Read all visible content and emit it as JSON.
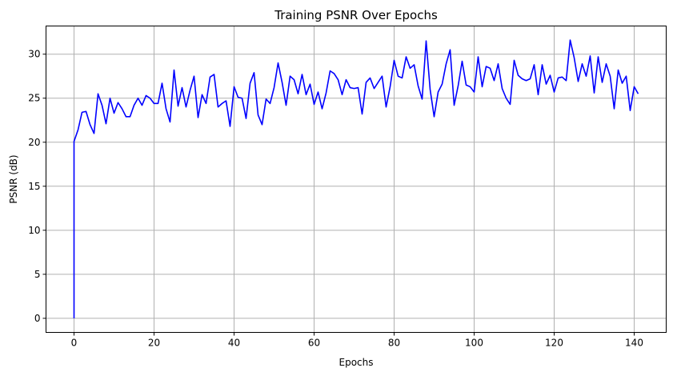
{
  "chart_data": {
    "type": "line",
    "title": "Training PSNR Over Epochs",
    "xlabel": "Epochs",
    "ylabel": "PSNR (dB)",
    "xlim": [
      -7,
      148
    ],
    "ylim": [
      -1.6,
      33.2
    ],
    "xticks": [
      0,
      20,
      40,
      60,
      80,
      100,
      120,
      140
    ],
    "yticks": [
      0,
      5,
      10,
      15,
      20,
      25,
      30
    ],
    "grid": true,
    "series": [
      {
        "color": "#0000ff",
        "x": [
          0,
          0,
          1,
          2,
          3,
          4,
          5,
          6,
          7,
          8,
          9,
          10,
          11,
          12,
          13,
          14,
          15,
          16,
          17,
          18,
          19,
          20,
          21,
          22,
          23,
          24,
          25,
          26,
          27,
          28,
          29,
          30,
          31,
          32,
          33,
          34,
          35,
          36,
          37,
          38,
          39,
          40,
          41,
          42,
          43,
          44,
          45,
          46,
          47,
          48,
          49,
          50,
          51,
          52,
          53,
          54,
          55,
          56,
          57,
          58,
          59,
          60,
          61,
          62,
          63,
          64,
          65,
          66,
          67,
          68,
          69,
          70,
          71,
          72,
          73,
          74,
          75,
          76,
          77,
          78,
          79,
          80,
          81,
          82,
          83,
          84,
          85,
          86,
          87,
          88,
          89,
          90,
          91,
          92,
          93,
          94,
          95,
          96,
          97,
          98,
          99,
          100,
          101,
          102,
          103,
          104,
          105,
          106,
          107,
          108,
          109,
          110,
          111,
          112,
          113,
          114,
          115,
          116,
          117,
          118,
          119,
          120,
          121,
          122,
          123,
          124,
          125,
          126,
          127,
          128,
          129,
          130,
          131,
          132,
          133,
          134,
          135,
          136,
          137,
          138,
          139,
          140,
          141
        ],
        "y": [
          0,
          20.1,
          21.4,
          23.4,
          23.5,
          22.0,
          21.0,
          25.5,
          24.2,
          22.1,
          25.0,
          23.3,
          24.5,
          23.8,
          22.9,
          22.9,
          24.2,
          25.0,
          24.2,
          25.3,
          25.0,
          24.4,
          24.4,
          26.7,
          23.8,
          22.3,
          28.2,
          24.1,
          26.2,
          24.0,
          25.9,
          27.5,
          22.8,
          25.4,
          24.4,
          27.4,
          27.7,
          24.0,
          24.4,
          24.7,
          21.8,
          26.3,
          25.1,
          25.0,
          22.7,
          26.7,
          27.9,
          23.1,
          22.0,
          24.9,
          24.4,
          26.2,
          29.0,
          26.8,
          24.2,
          27.5,
          27.1,
          25.5,
          27.7,
          25.4,
          26.6,
          24.3,
          25.7,
          23.8,
          25.6,
          28.1,
          27.8,
          27.1,
          25.4,
          27.1,
          26.2,
          26.1,
          26.2,
          23.2,
          26.8,
          27.3,
          26.1,
          26.8,
          27.5,
          24.0,
          26.3,
          29.3,
          27.5,
          27.3,
          29.7,
          28.4,
          28.8,
          26.4,
          24.9,
          31.5,
          26.0,
          22.9,
          25.7,
          26.6,
          28.9,
          30.5,
          24.2,
          26.4,
          29.2,
          26.5,
          26.3,
          25.7,
          29.7,
          26.3,
          28.6,
          28.4,
          27.0,
          28.9,
          26.1,
          25.0,
          24.3,
          29.3,
          27.6,
          27.2,
          27.0,
          27.2,
          28.8,
          25.4,
          28.8,
          26.6,
          27.6,
          25.7,
          27.3,
          27.4,
          27.0,
          31.6,
          29.6,
          26.9,
          28.9,
          27.5,
          29.8,
          25.6,
          29.7,
          26.8,
          28.9,
          27.5,
          23.8,
          28.2,
          26.7,
          27.5,
          23.6,
          26.3,
          25.5
        ]
      }
    ]
  }
}
